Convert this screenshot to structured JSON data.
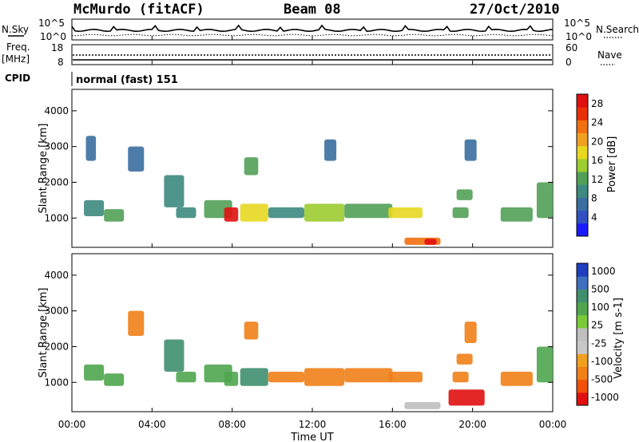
{
  "header": {
    "station": "McMurdo (fitACF)",
    "beam": "Beam 08",
    "date": "27/Oct/2010"
  },
  "top_panel": {
    "left_label": "N.Sky",
    "right_label": "N.Search",
    "left_ticks": [
      "10^5",
      "10^0"
    ],
    "right_ticks": [
      "10^5",
      "10^0"
    ]
  },
  "freq_panel": {
    "left_label_1": "Freq.",
    "left_label_2": "[MHz]",
    "left_ticks": [
      "18",
      "8"
    ],
    "right_label": "Nave",
    "right_ticks": [
      "60",
      "0"
    ]
  },
  "cpid": {
    "label": "CPID",
    "value": "normal (fast) 151"
  },
  "colors": {
    "power_scale": [
      "#1a1aff",
      "#3050c0",
      "#3a6ea0",
      "#3d8a80",
      "#52a058",
      "#9ccc30",
      "#e8d820",
      "#f0a020",
      "#f07010",
      "#e83008",
      "#e01010"
    ],
    "velocity_scale": [
      "#1f3fbf",
      "#3f6fbf",
      "#3f8f6f",
      "#4fa64f",
      "#79c939",
      "#bfbfbf",
      "#c8c8c8",
      "#f0a020",
      "#f08018",
      "#f05008",
      "#e01010"
    ]
  },
  "chart_data": [
    {
      "type": "heatmap",
      "title": "",
      "xlabel": "Time UT",
      "ylabel": "Slant Range [km]",
      "x_ticks": [
        "00:00",
        "04:00",
        "08:00",
        "12:00",
        "16:00",
        "20:00",
        "00:00"
      ],
      "y_ticks": [
        "1000",
        "2000",
        "3000",
        "4000"
      ],
      "x_range_hours": [
        0,
        24
      ],
      "ylim": [
        180,
        4600
      ],
      "colorbar": {
        "label": "Power [dB]",
        "ticks": [
          "4",
          "8",
          "12",
          "16",
          "20",
          "24",
          "28"
        ],
        "range": [
          0,
          30
        ]
      },
      "regions": [
        {
          "t": [
            0.6,
            1.6
          ],
          "r": [
            1050,
            1500
          ],
          "v": 9
        },
        {
          "t": [
            1.6,
            2.6
          ],
          "r": [
            900,
            1250
          ],
          "v": 11
        },
        {
          "t": [
            0.7,
            1.2
          ],
          "r": [
            2600,
            3300
          ],
          "v": 7
        },
        {
          "t": [
            2.8,
            3.6
          ],
          "r": [
            2300,
            3000
          ],
          "v": 8
        },
        {
          "t": [
            4.6,
            5.6
          ],
          "r": [
            1300,
            2200
          ],
          "v": 10
        },
        {
          "t": [
            5.2,
            6.2
          ],
          "r": [
            1000,
            1300
          ],
          "v": 9
        },
        {
          "t": [
            6.6,
            8.0
          ],
          "r": [
            1000,
            1500
          ],
          "v": 13
        },
        {
          "t": [
            7.6,
            8.3
          ],
          "r": [
            900,
            1300
          ],
          "v": 28
        },
        {
          "t": [
            8.4,
            9.8
          ],
          "r": [
            900,
            1400
          ],
          "v": 18
        },
        {
          "t": [
            8.6,
            9.3
          ],
          "r": [
            2200,
            2700
          ],
          "v": 12
        },
        {
          "t": [
            9.8,
            11.6
          ],
          "r": [
            1000,
            1300
          ],
          "v": 10
        },
        {
          "t": [
            11.6,
            13.6
          ],
          "r": [
            900,
            1400
          ],
          "v": 14
        },
        {
          "t": [
            12.6,
            13.2
          ],
          "r": [
            2600,
            3200
          ],
          "v": 7
        },
        {
          "t": [
            13.6,
            16.0
          ],
          "r": [
            1000,
            1400
          ],
          "v": 13
        },
        {
          "t": [
            15.8,
            17.5
          ],
          "r": [
            1000,
            1300
          ],
          "v": 17
        },
        {
          "t": [
            16.6,
            18.4
          ],
          "r": [
            250,
            450
          ],
          "v": 24
        },
        {
          "t": [
            17.6,
            18.2
          ],
          "r": [
            250,
            420
          ],
          "v": 30
        },
        {
          "t": [
            19.2,
            20.0
          ],
          "r": [
            1500,
            1800
          ],
          "v": 13
        },
        {
          "t": [
            19.0,
            19.8
          ],
          "r": [
            1000,
            1300
          ],
          "v": 12
        },
        {
          "t": [
            21.4,
            23.0
          ],
          "r": [
            900,
            1300
          ],
          "v": 12
        },
        {
          "t": [
            23.2,
            24.0
          ],
          "r": [
            1000,
            2000
          ],
          "v": 11
        },
        {
          "t": [
            19.6,
            20.2
          ],
          "r": [
            2600,
            3200
          ],
          "v": 7
        }
      ]
    },
    {
      "type": "heatmap",
      "title": "",
      "xlabel": "Time UT",
      "ylabel": "Slant Range [km]",
      "x_ticks": [
        "00:00",
        "04:00",
        "08:00",
        "12:00",
        "16:00",
        "20:00",
        "00:00"
      ],
      "y_ticks": [
        "1000",
        "2000",
        "3000",
        "4000"
      ],
      "x_range_hours": [
        0,
        24
      ],
      "ylim": [
        180,
        4600
      ],
      "colorbar": {
        "label": "Velocity [m s-1]",
        "ticks": [
          "1000",
          "500",
          "100",
          "25",
          "-25",
          "-100",
          "-500",
          "-1000"
        ],
        "range": [
          -1000,
          1000
        ]
      },
      "regions": [
        {
          "t": [
            0.6,
            1.6
          ],
          "r": [
            1050,
            1500
          ],
          "v": 150
        },
        {
          "t": [
            1.6,
            2.6
          ],
          "r": [
            900,
            1250
          ],
          "v": 120
        },
        {
          "t": [
            2.8,
            3.6
          ],
          "r": [
            2300,
            3000
          ],
          "v": -150
        },
        {
          "t": [
            4.6,
            5.6
          ],
          "r": [
            1300,
            2200
          ],
          "v": 250
        },
        {
          "t": [
            5.2,
            6.2
          ],
          "r": [
            1000,
            1300
          ],
          "v": 100
        },
        {
          "t": [
            6.6,
            8.0
          ],
          "r": [
            1000,
            1500
          ],
          "v": 200
        },
        {
          "t": [
            7.6,
            8.3
          ],
          "r": [
            900,
            1300
          ],
          "v": 120
        },
        {
          "t": [
            8.4,
            9.8
          ],
          "r": [
            900,
            1400
          ],
          "v": 300
        },
        {
          "t": [
            8.6,
            9.3
          ],
          "r": [
            2200,
            2700
          ],
          "v": -100
        },
        {
          "t": [
            9.8,
            11.6
          ],
          "r": [
            1000,
            1300
          ],
          "v": -150
        },
        {
          "t": [
            11.6,
            13.6
          ],
          "r": [
            900,
            1400
          ],
          "v": -300
        },
        {
          "t": [
            13.6,
            16.0
          ],
          "r": [
            1000,
            1400
          ],
          "v": -350
        },
        {
          "t": [
            15.8,
            17.5
          ],
          "r": [
            1000,
            1300
          ],
          "v": -300
        },
        {
          "t": [
            16.6,
            18.4
          ],
          "r": [
            250,
            450
          ],
          "v": 0
        },
        {
          "t": [
            18.8,
            20.6
          ],
          "r": [
            350,
            800
          ],
          "v": -500
        },
        {
          "t": [
            19.2,
            20.0
          ],
          "r": [
            1500,
            1800
          ],
          "v": -400
        },
        {
          "t": [
            19.0,
            19.8
          ],
          "r": [
            1000,
            1300
          ],
          "v": -300
        },
        {
          "t": [
            19.6,
            20.2
          ],
          "r": [
            2100,
            2700
          ],
          "v": -250
        },
        {
          "t": [
            21.4,
            23.0
          ],
          "r": [
            900,
            1300
          ],
          "v": -200
        },
        {
          "t": [
            23.2,
            24.0
          ],
          "r": [
            1000,
            2000
          ],
          "v": 150
        }
      ]
    }
  ]
}
